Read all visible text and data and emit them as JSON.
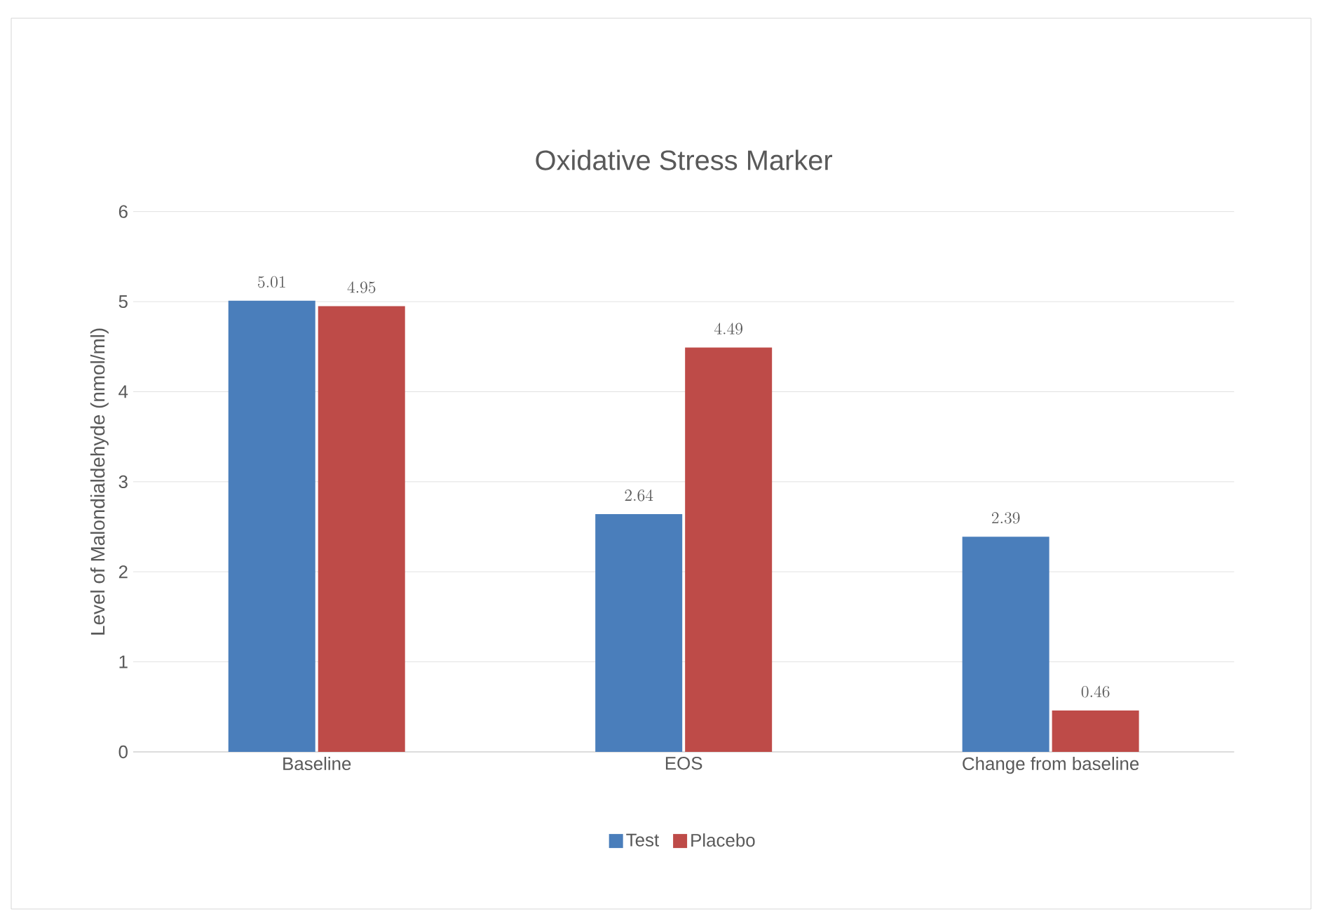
{
  "chart_data": {
    "type": "bar",
    "title": "Oxidative Stress Marker",
    "ylabel": "Level of Malondialdehyde (nmol/ml)",
    "categories": [
      "Baseline",
      "EOS",
      "Change from baseline"
    ],
    "series": [
      {
        "name": "Test",
        "color": "#4a7ebb",
        "values": [
          5.01,
          2.64,
          2.39
        ]
      },
      {
        "name": "Placebo",
        "color": "#be4b48",
        "values": [
          4.95,
          4.49,
          0.46
        ]
      }
    ],
    "ylim": [
      0,
      6
    ],
    "yticks": [
      0,
      1,
      2,
      3,
      4,
      5,
      6
    ],
    "grid": "y",
    "legend": "bottom",
    "data_labels": true
  }
}
